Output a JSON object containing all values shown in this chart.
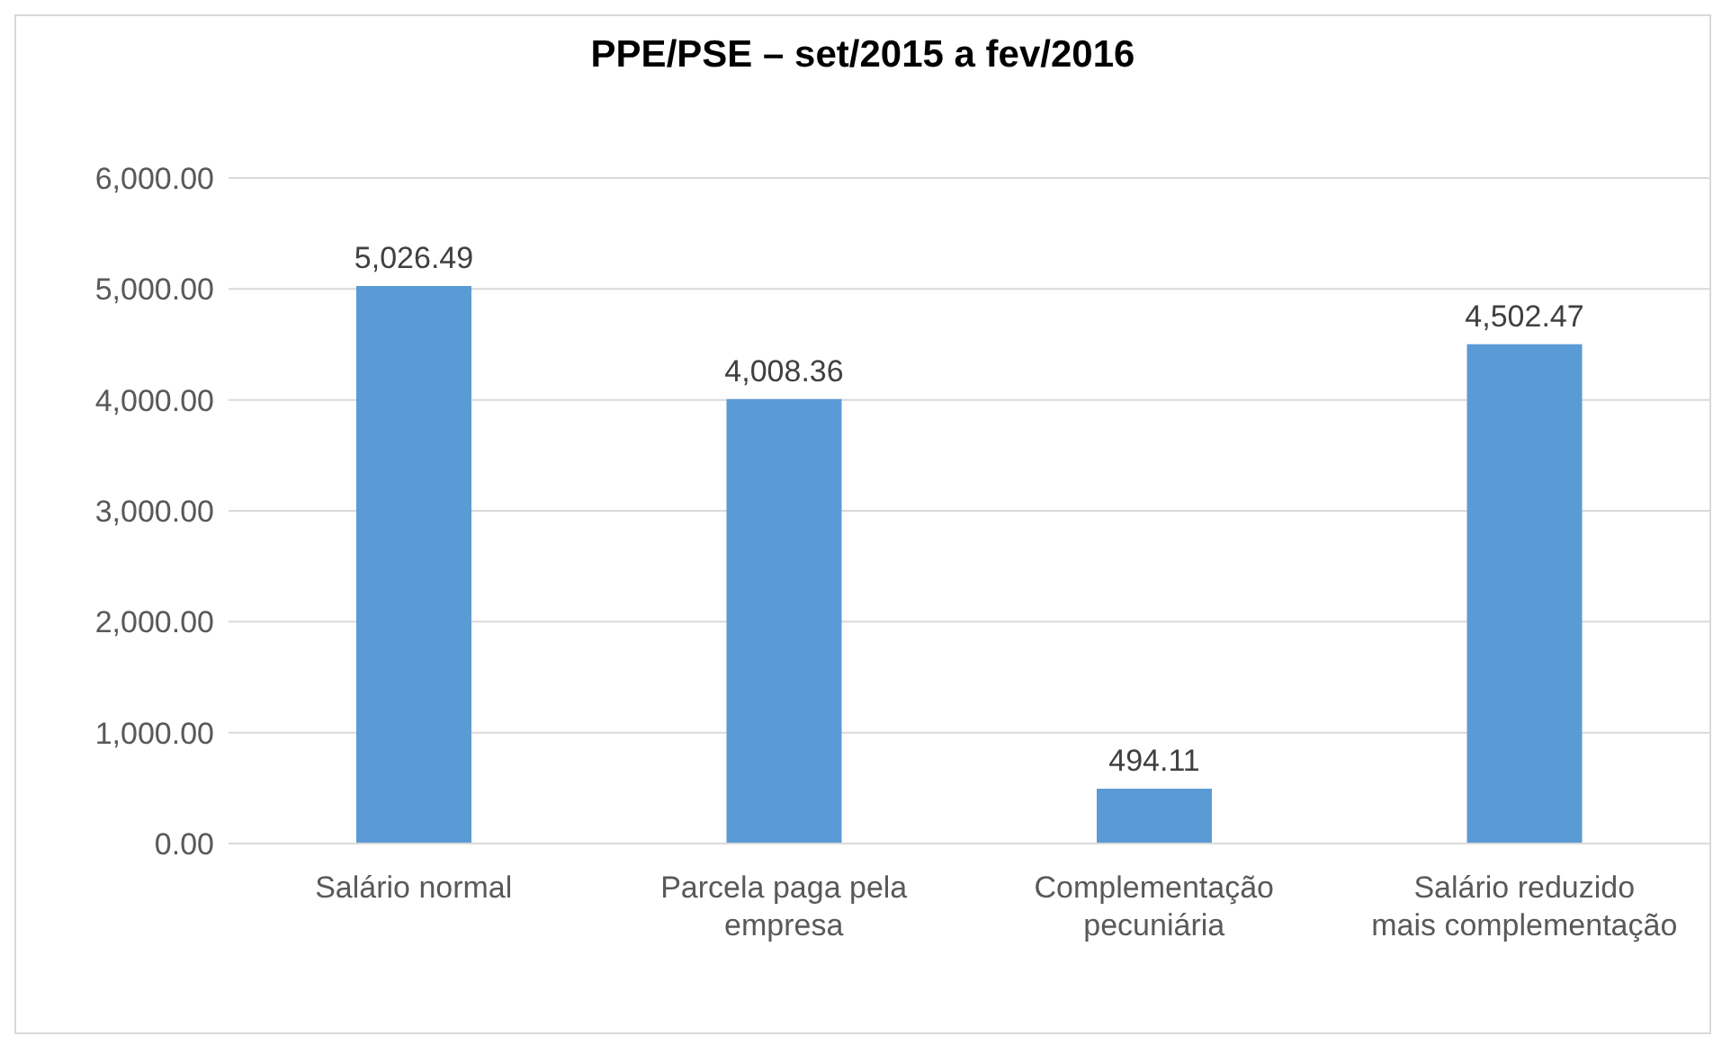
{
  "chart_data": {
    "type": "bar",
    "title": "PPE/PSE – set/2015 a fev/2016",
    "categories": [
      "Salário normal",
      "Parcela paga pela empresa",
      "Complementação pecuniária",
      "Salário reduzido mais complementação"
    ],
    "values": [
      5026.49,
      4008.36,
      494.11,
      4502.47
    ],
    "color": "#5b9bd5",
    "ylim": [
      0,
      6000
    ],
    "yticks": [
      {
        "value": 0,
        "label": "0.00"
      },
      {
        "value": 1000,
        "label": "1,000.00"
      },
      {
        "value": 2000,
        "label": "2,000.00"
      },
      {
        "value": 3000,
        "label": "3,000.00"
      },
      {
        "value": 4000,
        "label": "4,000.00"
      },
      {
        "value": 5000,
        "label": "5,000.00"
      },
      {
        "value": 6000,
        "label": "6,000.00"
      }
    ],
    "grid": "y",
    "legend": false,
    "value_labels": [
      "5,026.49",
      "4,008.36",
      "494.11",
      "4,502.47"
    ]
  }
}
